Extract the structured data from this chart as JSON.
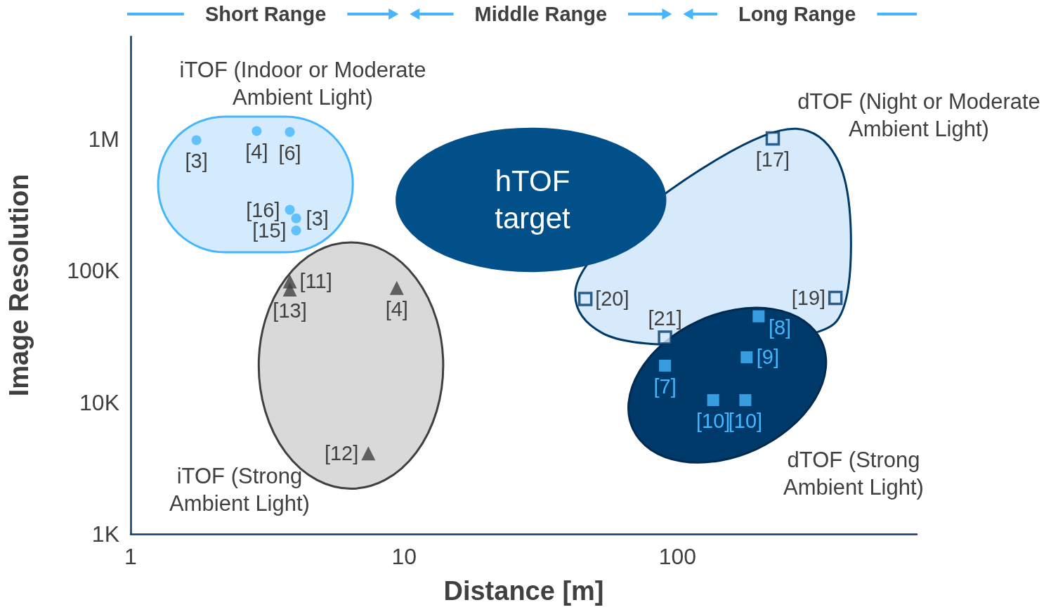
{
  "chart_data": {
    "type": "scatter",
    "xlabel": "Distance [m]",
    "ylabel": "Image Resolution",
    "xlim": [
      1,
      750
    ],
    "ylim": [
      1000,
      6000000
    ],
    "xticks": [
      1,
      10,
      100
    ],
    "yticks": [
      {
        "value": 1000,
        "label": "1K"
      },
      {
        "value": 10000,
        "label": "10K"
      },
      {
        "value": 100000,
        "label": "100K"
      },
      {
        "value": 1000000,
        "label": "1M"
      }
    ],
    "log": "xy",
    "grid": false,
    "series": [
      {
        "color": "#45b6fe",
        "marker": "circle",
        "x": [
          1.74,
          2.89,
          3.82,
          3.82,
          4.03,
          4.03
        ],
        "values": [
          980000,
          1150000,
          1130000,
          290000,
          250000,
          202000
        ]
      },
      {
        "color": "#404040",
        "marker": "triangle",
        "x": [
          3.82,
          3.82,
          9.4,
          7.4
        ],
        "values": [
          83000,
          72000,
          74000,
          4100
        ]
      },
      {
        "color": "#003a6b",
        "marker": "square",
        "x": [
          223,
          46,
          90,
          378
        ],
        "values": [
          1010000,
          61000,
          31000,
          62000
        ]
      },
      {
        "color": "#45b6fe",
        "marker": "square",
        "x": [
          198,
          179,
          90,
          135,
          177
        ],
        "values": [
          45000,
          22000,
          19000,
          10400,
          10400
        ]
      }
    ],
    "annotations": [
      "Short Range",
      "Middle Range",
      "Long Range",
      "iTOF (Indoor or Moderate Ambient Light)",
      "hTOF target",
      "dTOF (Night or Moderate Ambient Light)",
      "iTOF (Strong Ambient Light)",
      "dTOF (Strong Ambient Light)",
      {
        "text": "[3]",
        "x": 1.74,
        "y": 980000
      },
      {
        "text": "[4]",
        "x": 2.89,
        "y": 1150000
      },
      {
        "text": "[6]",
        "x": 3.82,
        "y": 1130000
      },
      {
        "text": "[16]",
        "x": 3.82,
        "y": 290000
      },
      {
        "text": "[3]",
        "x": 4.03,
        "y": 250000
      },
      {
        "text": "[15]",
        "x": 4.03,
        "y": 202000
      },
      {
        "text": "[11]",
        "x": 3.82,
        "y": 83000
      },
      {
        "text": "[13]",
        "x": 3.82,
        "y": 72000
      },
      {
        "text": "[4]",
        "x": 9.4,
        "y": 74000
      },
      {
        "text": "[12]",
        "x": 7.4,
        "y": 4100
      },
      {
        "text": "[17]",
        "x": 223,
        "y": 1010000
      },
      {
        "text": "[20]",
        "x": 46,
        "y": 61000
      },
      {
        "text": "[21]",
        "x": 90,
        "y": 31000
      },
      {
        "text": "[19]",
        "x": 378,
        "y": 62000
      },
      {
        "text": "[8]",
        "x": 198,
        "y": 45000
      },
      {
        "text": "[9]",
        "x": 179,
        "y": 22000
      },
      {
        "text": "[7]",
        "x": 90,
        "y": 19000
      },
      {
        "text": "[10]",
        "x": 135,
        "y": 10400
      },
      {
        "text": "[10]",
        "x": 177,
        "y": 10400
      }
    ]
  }
}
